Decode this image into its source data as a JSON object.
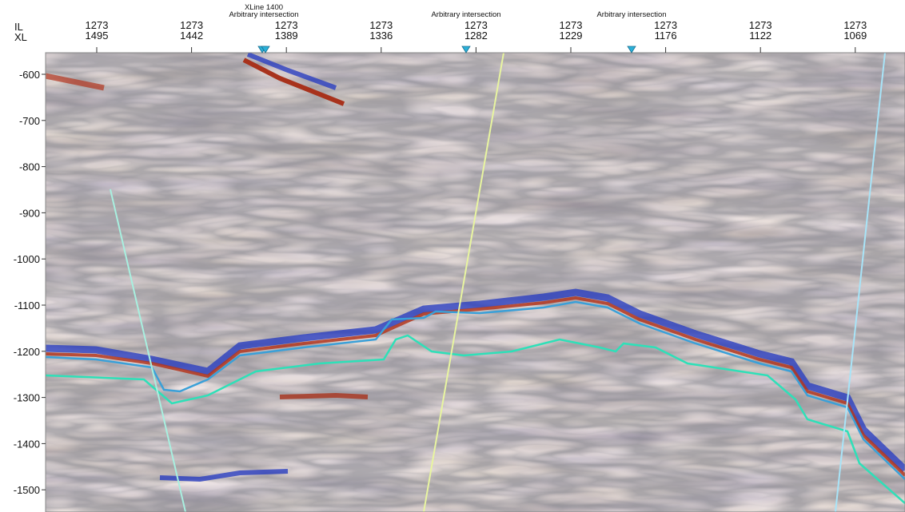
{
  "header": {
    "row_labels": [
      "IL",
      "XL"
    ]
  },
  "columns": [
    {
      "il": "1273",
      "xl": "1495"
    },
    {
      "il": "1273",
      "xl": "1442"
    },
    {
      "il": "1273",
      "xl": "1389"
    },
    {
      "il": "1273",
      "xl": "1336"
    },
    {
      "il": "1273",
      "xl": "1282"
    },
    {
      "il": "1273",
      "xl": "1229"
    },
    {
      "il": "1273",
      "xl": "1176"
    },
    {
      "il": "1273",
      "xl": "1122"
    },
    {
      "il": "1273",
      "xl": "1069"
    }
  ],
  "intersections": [
    {
      "lines": [
        "XLine 1400",
        "Arbitrary intersection"
      ]
    },
    {
      "lines": [
        "Arbitrary intersection"
      ]
    },
    {
      "lines": [
        "Arbitrary intersection"
      ]
    }
  ],
  "depth_axis": {
    "labels": [
      "-600",
      "-700",
      "-800",
      "-900",
      "-1000",
      "-1100",
      "-1200",
      "-1300",
      "-1400",
      "-1500"
    ]
  }
}
